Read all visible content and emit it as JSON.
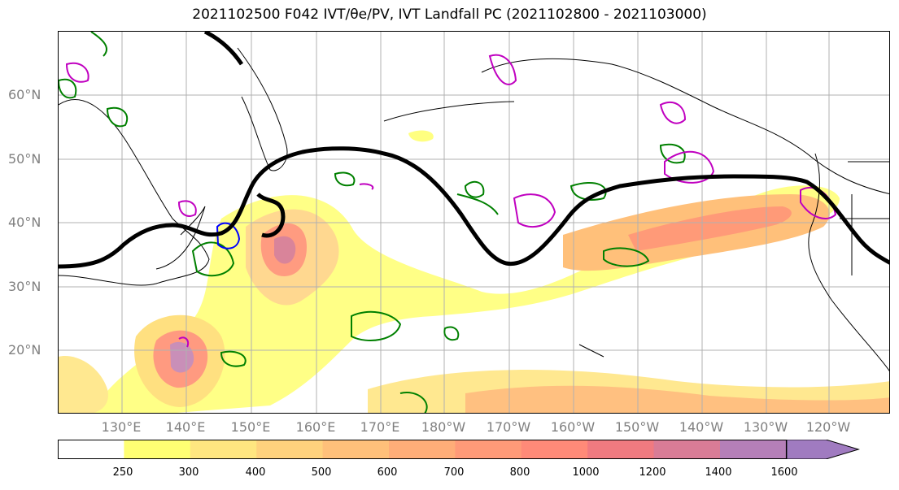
{
  "title": "2021102500 F042 IVT/θe/PV, IVT Landfall PC (2021102800 - 2021103000)",
  "lat_labels": [
    "60°N",
    "50°N",
    "40°N",
    "30°N",
    "20°N"
  ],
  "lon_labels": [
    "130°E",
    "140°E",
    "150°E",
    "160°E",
    "170°E",
    "180°W",
    "170°W",
    "160°W",
    "150°W",
    "140°W",
    "130°W",
    "120°W"
  ],
  "colorbar": {
    "levels": [
      "250",
      "300",
      "400",
      "500",
      "600",
      "700",
      "800",
      "1000",
      "1200",
      "1400",
      "1600"
    ],
    "colors": [
      "#ffffff",
      "#ffff73",
      "#ffe680",
      "#ffd27d",
      "#ffc07a",
      "#ffad78",
      "#ff9a78",
      "#ff8a78",
      "#f07a80",
      "#d97c96",
      "#b57fb8",
      "#a07bc0"
    ]
  },
  "colors": {
    "jet": "#000000",
    "theta_e": "#008000",
    "pv_blue": "#0000ff",
    "pv_magenta": "#c000c0",
    "land_outline": "#000000",
    "grid": "#b0b0b0",
    "axis_label": "#808080"
  }
}
